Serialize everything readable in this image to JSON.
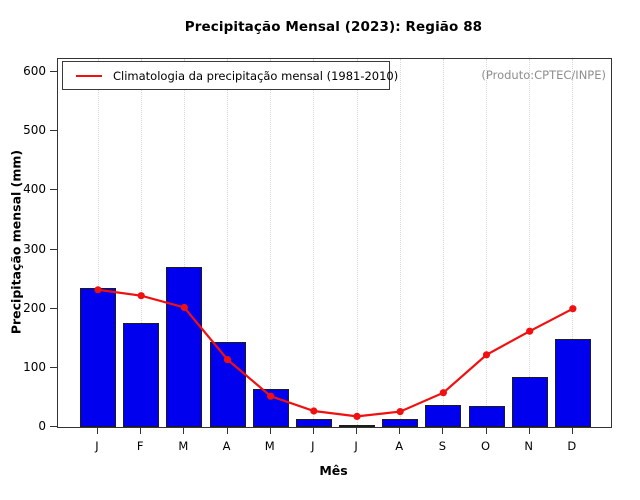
{
  "title": "Precipitação Mensal (2023): Região 88",
  "watermark": "(Produto:CPTEC/INPE)",
  "colors": {
    "bar_fill": "#0000ee",
    "bar_border": "#1c1c1c",
    "climatology_line": "#f01010",
    "gridline": "#d8d8d8",
    "watermark_text": "#8e8e8e",
    "axis": "#333333"
  },
  "chart_data": {
    "type": "bar",
    "title": "Precipitação Mensal (2023): Região 88",
    "xlabel": "Mês",
    "ylabel": "Precipitação mensal (mm)",
    "categories": [
      "J",
      "F",
      "M",
      "A",
      "M",
      "J",
      "J",
      "A",
      "S",
      "O",
      "N",
      "D"
    ],
    "series": [
      {
        "type": "bar",
        "values": [
          235,
          176,
          271,
          143,
          65,
          13,
          2,
          13,
          37,
          35,
          84,
          149
        ]
      },
      {
        "name": "Climatologia da precipitação mensal (1981-2010)",
        "type": "line",
        "values": [
          232,
          222,
          202,
          114,
          52,
          27,
          18,
          26,
          58,
          122,
          162,
          200
        ]
      }
    ],
    "ylim": [
      0,
      600
    ],
    "yticks": [
      0,
      100,
      200,
      300,
      400,
      500,
      600
    ],
    "grid": "vertical-dotted",
    "legend_position": "topleft"
  }
}
